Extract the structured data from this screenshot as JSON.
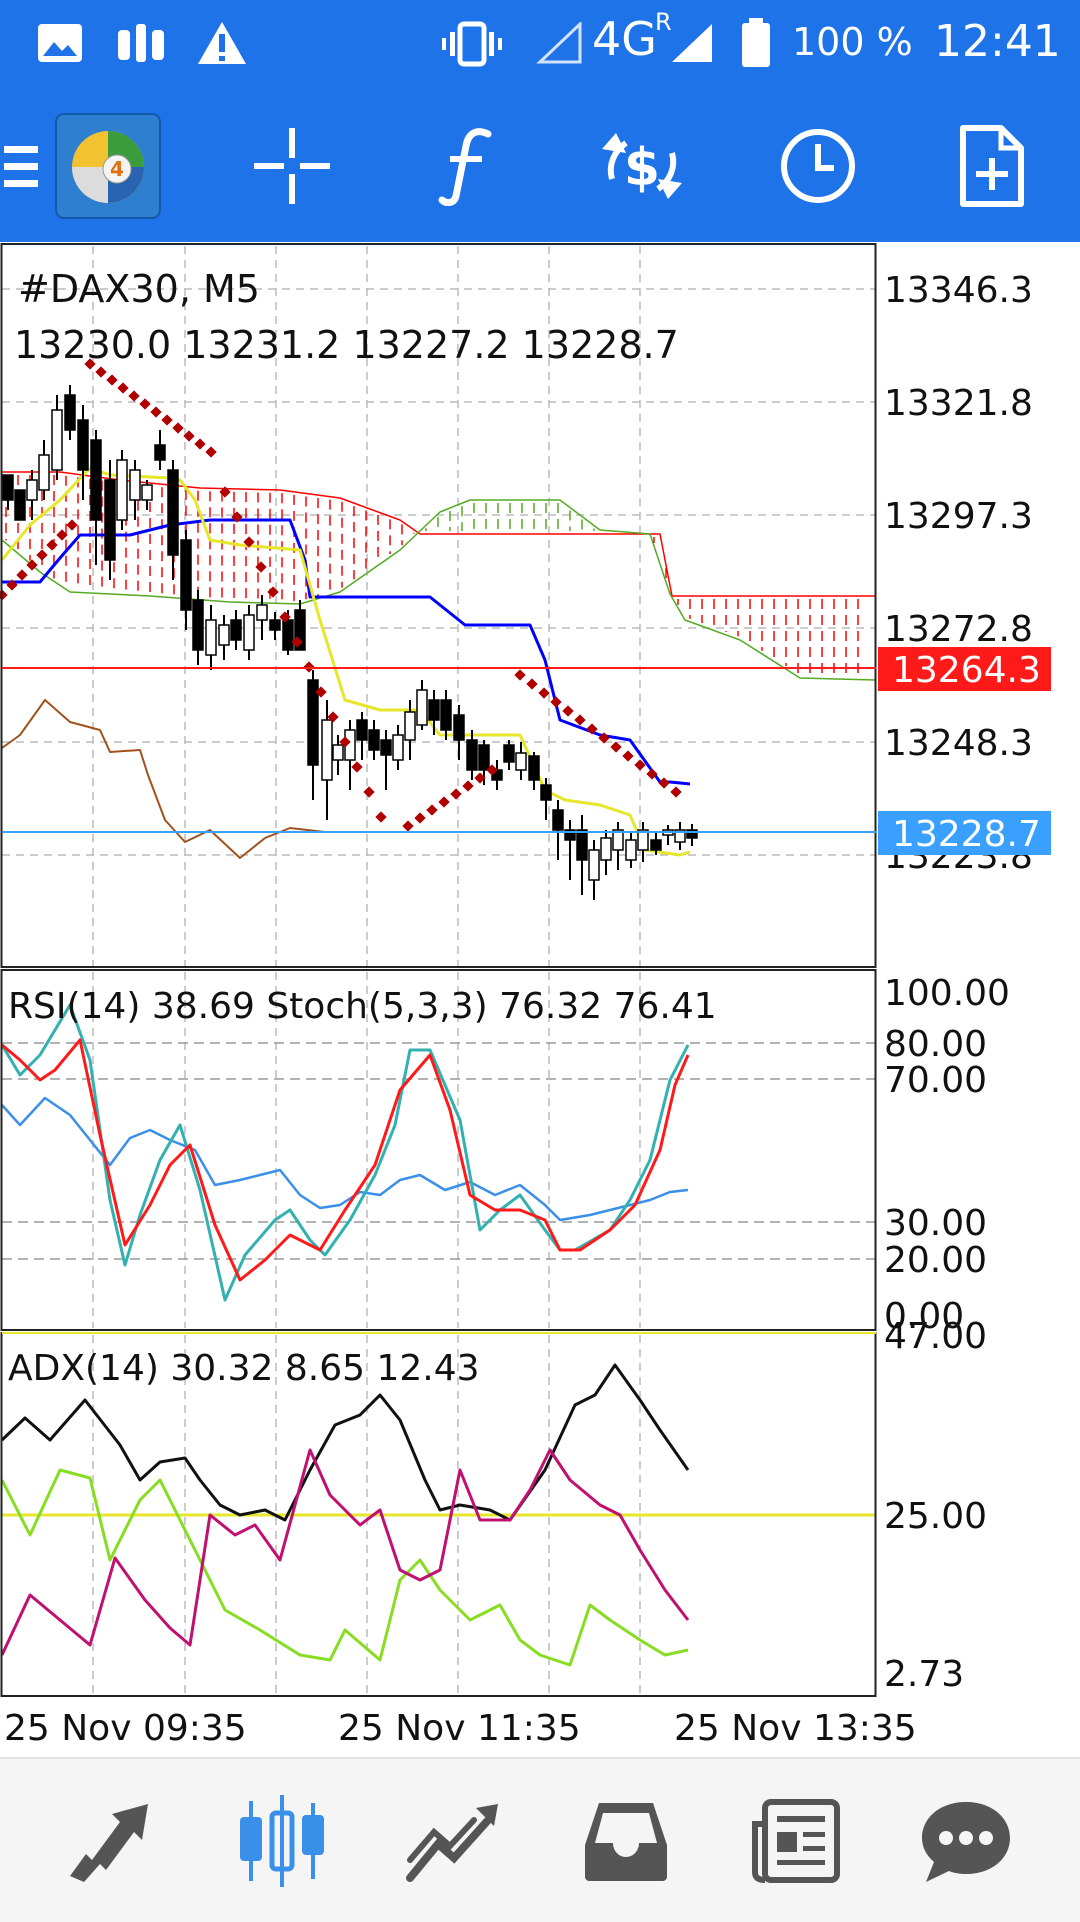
{
  "status_bar": {
    "network": "4G",
    "roaming": "R",
    "battery": "100 %",
    "time": "12:41"
  },
  "toolbar": {
    "items": [
      {
        "name": "menu",
        "icon": "hamburger-icon"
      },
      {
        "name": "metatrader-4",
        "icon": "mt4-logo-icon",
        "label": "4"
      },
      {
        "name": "crosshair",
        "icon": "crosshair-icon"
      },
      {
        "name": "indicators",
        "icon": "function-icon"
      },
      {
        "name": "trade",
        "icon": "dollar-arrows-icon"
      },
      {
        "name": "timeframe",
        "icon": "clock-icon"
      },
      {
        "name": "objects",
        "icon": "new-document-icon"
      }
    ]
  },
  "chart": {
    "symbol": "#DAX30, M5",
    "ohlc": "13230.0 13231.2 13227.2 13228.7",
    "price_labels": [
      "13346.3",
      "13321.8",
      "13297.3",
      "13272.8",
      "13248.3",
      "13223.8"
    ],
    "level_line": {
      "value": "13264.3",
      "color": "#ff1a1a"
    },
    "bid_line": {
      "value": "13228.7",
      "color": "#3aa0ff"
    },
    "oscillator": {
      "header": "RSI(14) 38.69 Stoch(5,3,3) 76.32 76.41",
      "levels": [
        "100.00",
        "80.00",
        "70.00",
        "30.00",
        "20.00",
        "0.00"
      ]
    },
    "adx": {
      "header": "ADX(14) 30.32 8.65 12.43",
      "levels": [
        "47.00",
        "25.00",
        "2.73"
      ]
    },
    "time_labels": [
      "25 Nov 09:35",
      "25 Nov 11:35",
      "25 Nov 13:35"
    ]
  },
  "bottom_nav": [
    {
      "name": "quotes",
      "icon": "quotes-arrows-icon",
      "active": false
    },
    {
      "name": "chart",
      "icon": "candlestick-icon",
      "active": true
    },
    {
      "name": "trade",
      "icon": "trade-chart-icon",
      "active": false
    },
    {
      "name": "history",
      "icon": "inbox-icon",
      "active": false
    },
    {
      "name": "news",
      "icon": "newspaper-icon",
      "active": false
    },
    {
      "name": "messages",
      "icon": "chat-bubble-icon",
      "active": false
    }
  ],
  "colors": {
    "accent": "#1e73e8",
    "candle_bear": "#000000",
    "candle_bull": "#ffffff",
    "tenkan": "#0000ff",
    "kijun": "#e6e62a",
    "senkou_a": "#55aa22",
    "senkou_b": "#ff0000",
    "sar": "#b00000",
    "chikou": "#a0521c",
    "rsi": "#3a8fe8",
    "stoch_main": "#33b0b0",
    "stoch_signal": "#ff1a1a",
    "adx_main": "#111111",
    "adx_plus": "#88dd22",
    "adx_minus": "#c01070"
  }
}
